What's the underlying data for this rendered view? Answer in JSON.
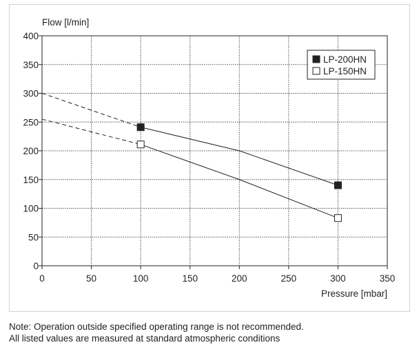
{
  "chart_data": {
    "type": "line",
    "ylabel": "Flow [l/min]",
    "xlabel": "Pressure [mbar]",
    "xlim": [
      0,
      350
    ],
    "ylim": [
      0,
      400
    ],
    "xticks": [
      0,
      50,
      100,
      150,
      200,
      250,
      300,
      350
    ],
    "yticks": [
      0,
      50,
      100,
      150,
      200,
      250,
      300,
      350,
      400
    ],
    "grid": true,
    "legend_position": "top-right",
    "series": [
      {
        "name": "LP-200HN",
        "marker": "filled-square",
        "color": "#222222",
        "points": [
          {
            "x": 100,
            "y": 241
          },
          {
            "x": 200,
            "y": 200
          },
          {
            "x": 300,
            "y": 140
          }
        ],
        "marked_points": [
          {
            "x": 100,
            "y": 241
          },
          {
            "x": 300,
            "y": 140
          }
        ],
        "extrapolation": [
          {
            "x": 0,
            "y": 300
          },
          {
            "x": 100,
            "y": 241
          }
        ]
      },
      {
        "name": "LP-150HN",
        "marker": "open-square",
        "color": "#222222",
        "points": [
          {
            "x": 100,
            "y": 211
          },
          {
            "x": 200,
            "y": 150
          },
          {
            "x": 300,
            "y": 83
          }
        ],
        "marked_points": [
          {
            "x": 100,
            "y": 211
          },
          {
            "x": 300,
            "y": 83
          }
        ],
        "extrapolation": [
          {
            "x": 0,
            "y": 255
          },
          {
            "x": 100,
            "y": 211
          }
        ]
      }
    ]
  },
  "note": {
    "line1": "Note: Operation outside specified operating range is not recommended.",
    "line2": "All listed values are measured at standard atmospheric conditions"
  }
}
